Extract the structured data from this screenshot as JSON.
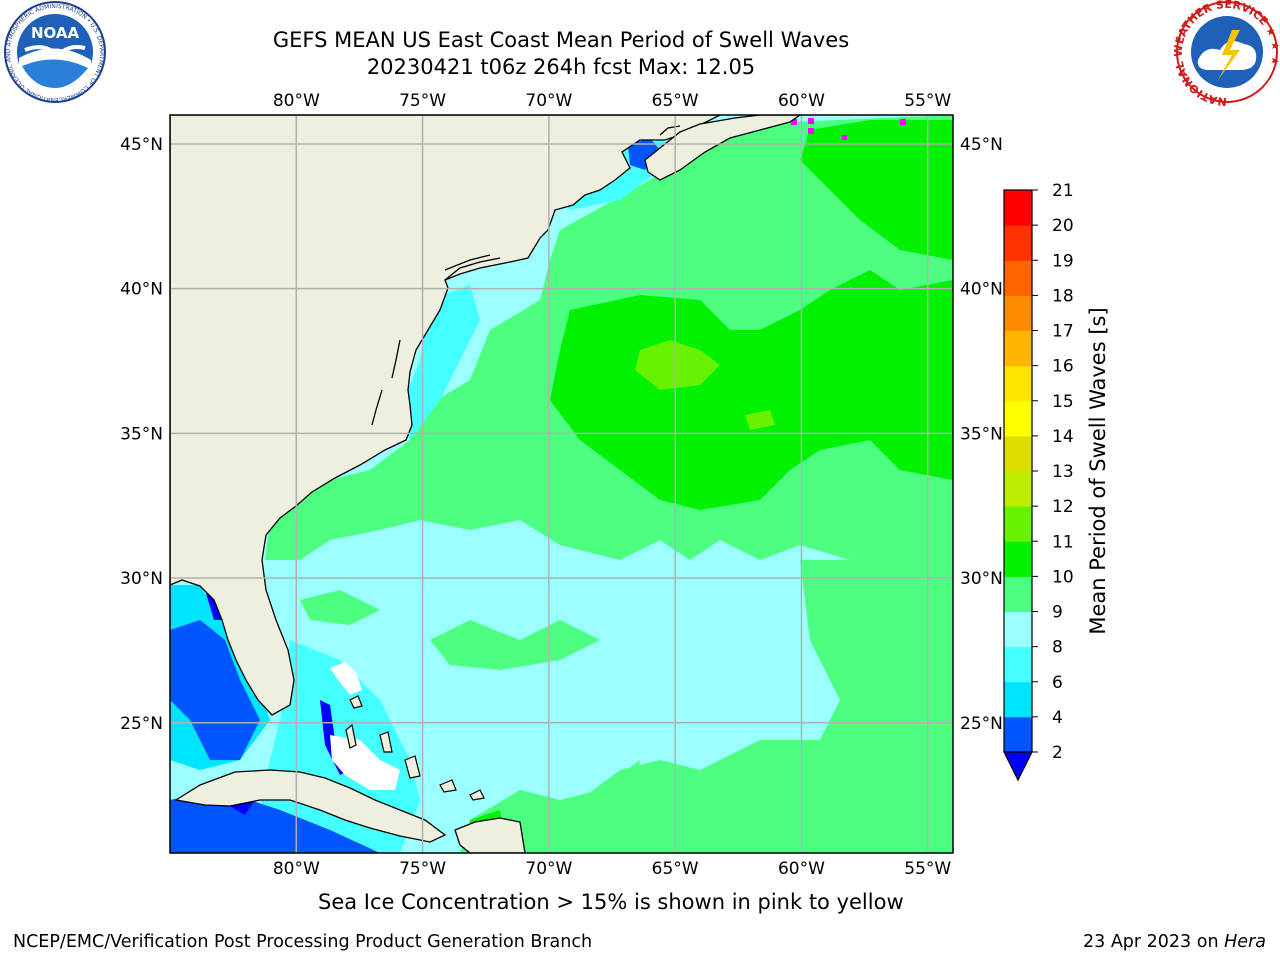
{
  "title": {
    "line1": "GEFS MEAN US East Coast Mean Period of Swell Waves",
    "line2": "20230421 t06z 264h fcst   Max: 12.05"
  },
  "map": {
    "extent_lon": [
      -85,
      -54
    ],
    "extent_lat": [
      20.5,
      46
    ],
    "lon_ticks": [
      {
        "lon": -80,
        "label": "80°W"
      },
      {
        "lon": -75,
        "label": "75°W"
      },
      {
        "lon": -70,
        "label": "70°W"
      },
      {
        "lon": -65,
        "label": "65°W"
      },
      {
        "lon": -60,
        "label": "60°W"
      },
      {
        "lon": -55,
        "label": "55°W"
      }
    ],
    "lat_ticks": [
      {
        "lat": 45,
        "label": "45°N"
      },
      {
        "lat": 40,
        "label": "40°N"
      },
      {
        "lat": 35,
        "label": "35°N"
      },
      {
        "lat": 30,
        "label": "30°N"
      },
      {
        "lat": 25,
        "label": "25°N"
      }
    ],
    "land_color": "#efefdf",
    "coast_color": "#000000",
    "grid_color": "#b0b0b0"
  },
  "colorbar": {
    "label": "Mean Period of Swell Waves [s]",
    "bounds": [
      2,
      4,
      6,
      8,
      9,
      10,
      11,
      12,
      13,
      14,
      15,
      16,
      17,
      18,
      19,
      20,
      21
    ],
    "colors": [
      "#0055ff",
      "#00e5ff",
      "#44ffff",
      "#9cffff",
      "#4dff80",
      "#00f200",
      "#66f200",
      "#bbee00",
      "#dddd00",
      "#ffff00",
      "#ffe400",
      "#ffb600",
      "#ff8c00",
      "#ff6400",
      "#ff3300",
      "#ff0000"
    ],
    "under_color": "#0000ff"
  },
  "footer": {
    "note": "Sea Ice Concentration > 15% is shown in pink to yellow",
    "left": "NCEP/EMC/Verification Post Processing Product Generation Branch",
    "right_date": "23 Apr 2023 on",
    "right_host": "Hera"
  },
  "logos": {
    "noaa": "NOAA",
    "noaa_ring": "NATIONAL OCEANIC AND ATMOSPHERIC ADMINISTRATION • U.S. DEPARTMENT OF COMMERCE •",
    "nws_ring": "NATIONAL WEATHER SERVICE ★ ★ ★"
  }
}
